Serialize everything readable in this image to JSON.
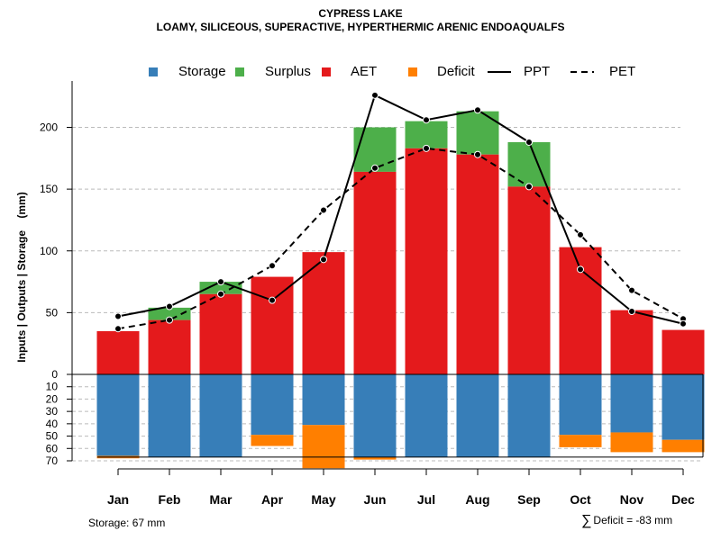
{
  "title": "CYPRESS LAKE",
  "subtitle": "LOAMY, SILICEOUS, SUPERACTIVE, HYPERTHERMIC ARENIC ENDOAQUALFS",
  "chart_data": {
    "type": "bar",
    "categories": [
      "Jan",
      "Feb",
      "Mar",
      "Apr",
      "May",
      "Jun",
      "Jul",
      "Aug",
      "Sep",
      "Oct",
      "Nov",
      "Dec"
    ],
    "ylabel": "Inputs | Outputs | Storage    (mm)",
    "ylim_top": [
      0,
      230
    ],
    "ylim_bottom": [
      0,
      72
    ],
    "yticks_top": [
      0,
      50,
      100,
      150,
      200
    ],
    "yticks_bottom": [
      10,
      20,
      30,
      40,
      50,
      60,
      70
    ],
    "series": [
      {
        "name": "AET",
        "color": "#E41A1C",
        "values": [
          35,
          44,
          65,
          79,
          99,
          164,
          183,
          178,
          152,
          103,
          52,
          36
        ]
      },
      {
        "name": "Surplus",
        "color": "#4DAF4A",
        "values": [
          0,
          10,
          10,
          0,
          0,
          36,
          22,
          35,
          36,
          0,
          0,
          0
        ]
      },
      {
        "name": "Storage",
        "color": "#377EB8",
        "values": [
          66,
          67,
          67,
          49,
          41,
          67,
          67,
          67,
          67,
          49,
          47,
          53
        ]
      },
      {
        "name": "Deficit",
        "color": "#FF7F00",
        "values": [
          2,
          0,
          0,
          9,
          35,
          2,
          0,
          0,
          0,
          10,
          16,
          10
        ]
      },
      {
        "name": "PPT",
        "style": "solid",
        "values": [
          47,
          55,
          75,
          60,
          93,
          226,
          206,
          214,
          188,
          85,
          51,
          41
        ]
      },
      {
        "name": "PET",
        "style": "dashed",
        "values": [
          37,
          44,
          65,
          88,
          133,
          167,
          183,
          178,
          152,
          113,
          68,
          45
        ]
      }
    ],
    "legend": [
      "Storage",
      "Surplus",
      "AET",
      "Deficit",
      "PPT",
      "PET"
    ],
    "legend_position": "top",
    "grid": true
  },
  "footer": {
    "storage_label": "Storage: 67 mm",
    "deficit_symbol": "∑",
    "deficit_label": "Deficit = -83 mm"
  },
  "colors": {
    "storage": "#377EB8",
    "surplus": "#4DAF4A",
    "aet": "#E41A1C",
    "deficit": "#FF7F00",
    "grid": "#bbbbbb"
  }
}
